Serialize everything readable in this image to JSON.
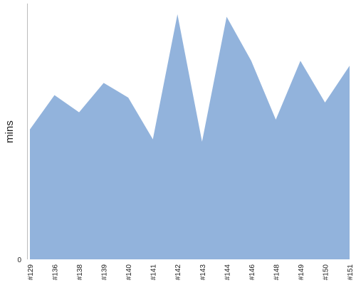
{
  "chart_data": {
    "type": "area",
    "categories": [
      "#129",
      "#136",
      "#138",
      "#139",
      "#140",
      "#141",
      "#142",
      "#143",
      "#144",
      "#146",
      "#148",
      "#149",
      "#150",
      "#151"
    ],
    "series": [
      {
        "values": [
          53,
          67,
          60,
          72,
          66,
          49,
          100,
          48,
          99,
          81,
          57,
          81,
          64,
          79
        ]
      }
    ],
    "xlabel": "",
    "ylabel": "mins",
    "y_ticks": [
      "0"
    ],
    "ylim": [
      0,
      100
    ],
    "grid": false,
    "colors": {
      "area": "#92b3dc",
      "axis": "#bbbbbb"
    }
  }
}
